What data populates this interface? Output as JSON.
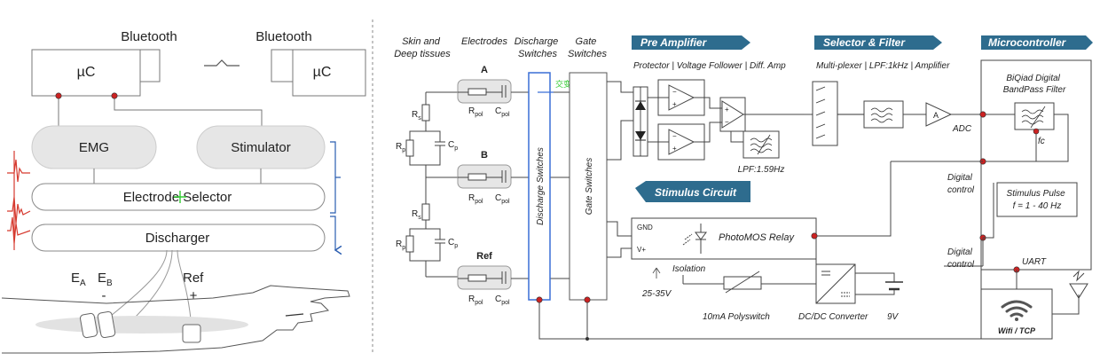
{
  "left": {
    "bluetooth_left": "Bluetooth",
    "bluetooth_right": "Bluetooth",
    "uc_left": "µC",
    "uc_right": "µC",
    "emg": "EMG",
    "stimulator": "Stimulator",
    "electrode_selector": "Electrode Selector",
    "discharger": "Discharger",
    "ea": "E",
    "ea_sub": "A",
    "eb": "E",
    "eb_sub": "B",
    "ref": "Ref",
    "minus": "-",
    "plus": "+"
  },
  "right": {
    "col_skin": [
      "Skin and",
      "Deep tissues"
    ],
    "col_electrodes": "Electrodes",
    "col_discharge": [
      "Discharge",
      "Switches"
    ],
    "col_gate": [
      "Gate",
      "Switches"
    ],
    "banner_pre": "Pre Amplifier",
    "banner_sel": "Selector & Filter",
    "banner_mcu": "Microcontroller",
    "banner_stim": "Stimulus Circuit",
    "pre_sub": "Protector | Voltage Follower | Diff. Amp",
    "sel_sub": "Multi-plexer | LPF:1kHz | Amplifier",
    "biquad": [
      "BiQiad Digital",
      "BandPass Filter"
    ],
    "elec_a": "A",
    "elec_b": "B",
    "elec_ref": "Ref",
    "rpol": "R",
    "rpol_sub": "pol",
    "cpol": "C",
    "cpol_sub": "pol",
    "rs": "R",
    "rs_sub": "s",
    "rp": "R",
    "rp_sub": "p",
    "cp": "C",
    "cp_sub": "p",
    "discharge_vertical": "Discharge Switches",
    "gate_vertical": "Gate Switches",
    "green_mark": "交变",
    "lpf": "LPF:1.59Hz",
    "adc": "ADC",
    "amp_a": "A",
    "fc": "fc",
    "digital_control_1": [
      "Digital",
      "control"
    ],
    "digital_control_2": [
      "Digital",
      "control"
    ],
    "stimulus_pulse": [
      "Stimulus Pulse",
      "f = 1 - 40 Hz"
    ],
    "uart": "UART",
    "wifi": "Wifi / TCP",
    "gnd": "GND",
    "vplus": "V+",
    "photomos": "PhotoMOS Relay",
    "isolation": "Isolation",
    "voltage": "25-35V",
    "polyswitch": "10mA Polyswitch",
    "dcdc": "DC/DC Converter",
    "nine_v": "9V"
  },
  "colors": {
    "banner": "#2e6c8e",
    "red_dot": "#cc2222",
    "box_fill": "#e6e6e6",
    "blue_outline": "#3a6fd6",
    "ecg_red": "#d63a2f",
    "bracket_blue": "#2a5db0",
    "green": "#33cc33"
  }
}
